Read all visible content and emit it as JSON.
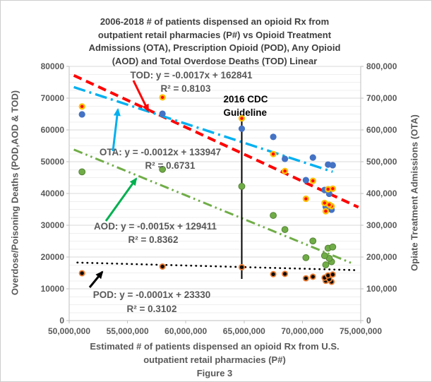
{
  "figure": {
    "title_lines": [
      "2006-2018 # of patients dispensed an opioid Rx from",
      "outpatient retail pharmacies (P#) vs Opioid Treatment",
      "Admissions (OTA), Prescription Opioid (POD), Any Opioid",
      "(AOD) and Total Overdose Deaths (TOD) Linear"
    ],
    "ylabel_left": "Overdose/Poisoning Deaths (POD,AOD & TOD)",
    "ylabel_right": "Opiate Treatment Admissions (OTA)",
    "xlabel_lines": [
      "Estimated # of patients dispensed an opioid Rx from U.S.",
      "outpatient retail pharmacies (P#)"
    ],
    "caption": "Figure 3"
  },
  "chart_data": {
    "type": "scatter",
    "period": "2006-2018",
    "title": "2006-2018 # of patients dispensed an opioid Rx from outpatient retail pharmacies (P#) vs Opioid Treatment Admissions (OTA), Prescription Opioid (POD), Any Opioid (AOD) and Total Overdose Deaths (TOD) Linear",
    "xlabel": "Estimated # of patients dispensed an opioid Rx from U.S. outpatient retail pharmacies (P#)",
    "ylabel_left": "Overdose/Poisoning Deaths (POD,AOD & TOD)",
    "ylabel_right": "Opiate Treatment Admissions (OTA)",
    "caption": "Figure 3",
    "legend": "none",
    "grid": "horizontal major + minor",
    "axes": {
      "x": {
        "min": 50000000,
        "max": 75000000,
        "tick_values": [
          50000000,
          55000000,
          60000000,
          65000000,
          70000000,
          75000000
        ],
        "tick_labels": [
          "50,000,000",
          "55,000,000",
          "60,000,000",
          "65,000,000",
          "70,000,000",
          "75,000,000"
        ]
      },
      "y_left": {
        "min": 0,
        "max": 80000,
        "minor_step": 2500,
        "tick_values": [
          0,
          10000,
          20000,
          30000,
          40000,
          50000,
          60000,
          70000,
          80000
        ],
        "tick_labels": [
          "0",
          "10000",
          "20000",
          "30000",
          "40000",
          "50000",
          "60000",
          "70000",
          "80000"
        ]
      },
      "y_right": {
        "min": 0,
        "max": 800000,
        "tick_values": [
          0,
          100000,
          200000,
          300000,
          400000,
          500000,
          600000,
          700000,
          800000
        ],
        "tick_labels": [
          "0",
          "100,000",
          "200,000",
          "300,000",
          "400,000",
          "500,000",
          "600,000",
          "700,000",
          "800,000"
        ]
      }
    },
    "x_values": [
      72000000,
      72500000,
      72300000,
      71900000,
      70300000,
      72200000,
      72600000,
      70900000,
      68500000,
      67500000,
      64800000,
      58000000,
      51100000
    ],
    "series": [
      {
        "id": "tod",
        "name": "TOD",
        "axis": "left",
        "dot_color": "#FF0000",
        "ring_color": "#FFC000",
        "values": [
          34425,
          36010,
          36450,
          36999,
          38329,
          41340,
          41502,
          43982,
          47055,
          52404,
          63632,
          70237,
          67367
        ]
      },
      {
        "id": "aod",
        "name": "AOD",
        "axis": "left",
        "dot_color": "#70AD47",
        "ring_color": "#548235",
        "values": [
          17545,
          18516,
          19582,
          20422,
          19800,
          22784,
          23166,
          25052,
          28647,
          33091,
          42249,
          47600,
          46802
        ]
      },
      {
        "id": "pod",
        "name": "POD",
        "axis": "left",
        "dot_color": "#0d0d0d",
        "ring_color": "#ED7D31",
        "values": [
          12500,
          12200,
          13000,
          13500,
          13300,
          14200,
          14500,
          13800,
          14700,
          14600,
          16800,
          17000,
          14900
        ]
      },
      {
        "id": "ota",
        "name": "OTA",
        "axis": "right",
        "dot_color": "#4472C4",
        "ring_color": "",
        "values": [
          358000,
          349000,
          399000,
          411000,
          442000,
          491000,
          489000,
          513000,
          509000,
          578000,
          604000,
          651000,
          649000
        ]
      }
    ],
    "trendlines": [
      {
        "id": "tod",
        "equation": "TOD: y = -0.0017x + 162841",
        "r2": "R² = 0.8103",
        "slope": -0.0017,
        "intercept": 162841,
        "color": "#FF0000",
        "width": 4,
        "dash": "12 7",
        "x_range": [
          50400000,
          74800000
        ]
      },
      {
        "id": "ota",
        "equation": "OTA: y = -0.0012x + 133947",
        "r2": "R² = 0.6731",
        "slope": -0.0012,
        "intercept": 133947,
        "color": "#00B0F0",
        "width": 3.4,
        "dash": "17 6 3 6",
        "x_range": [
          50400000,
          72600000
        ]
      },
      {
        "id": "aod",
        "equation": "AOD: y = -0.0015x + 129411",
        "r2": "R² = 0.8362",
        "slope": -0.0015,
        "intercept": 129411,
        "color": "#70AD47",
        "width": 3,
        "dash": "13 5 2.5 5 2.5 5",
        "x_range": [
          50400000,
          74200000
        ]
      },
      {
        "id": "pod",
        "equation": "POD: y = -0.0001x + 23330",
        "r2": "R² = 0.3102",
        "slope": -0.0001,
        "intercept": 23330,
        "color": "#000000",
        "width": 2.6,
        "dash": "0.5 6.5",
        "x_range": [
          50700000,
          74600000
        ]
      }
    ],
    "annotations": {
      "cdc_guideline": {
        "line1": "2016 CDC",
        "line2": "Guideline",
        "x_value": 64800000
      }
    },
    "colors": {
      "tod_dots": "#FF0000",
      "tod_ring": "#FFC000",
      "ota_dots": "#4472C4",
      "ota_trend": "#00B0F0",
      "aod_dots": "#70AD47",
      "aod_arrow": "#00B050",
      "pod_dots": "#0d0d0d",
      "pod_ring": "#ED7D31",
      "text_gray": "#595959",
      "grid_major": "#D9D9D9",
      "grid_minor": "#EFEFEF",
      "axis_line": "#BFBFBF"
    }
  }
}
